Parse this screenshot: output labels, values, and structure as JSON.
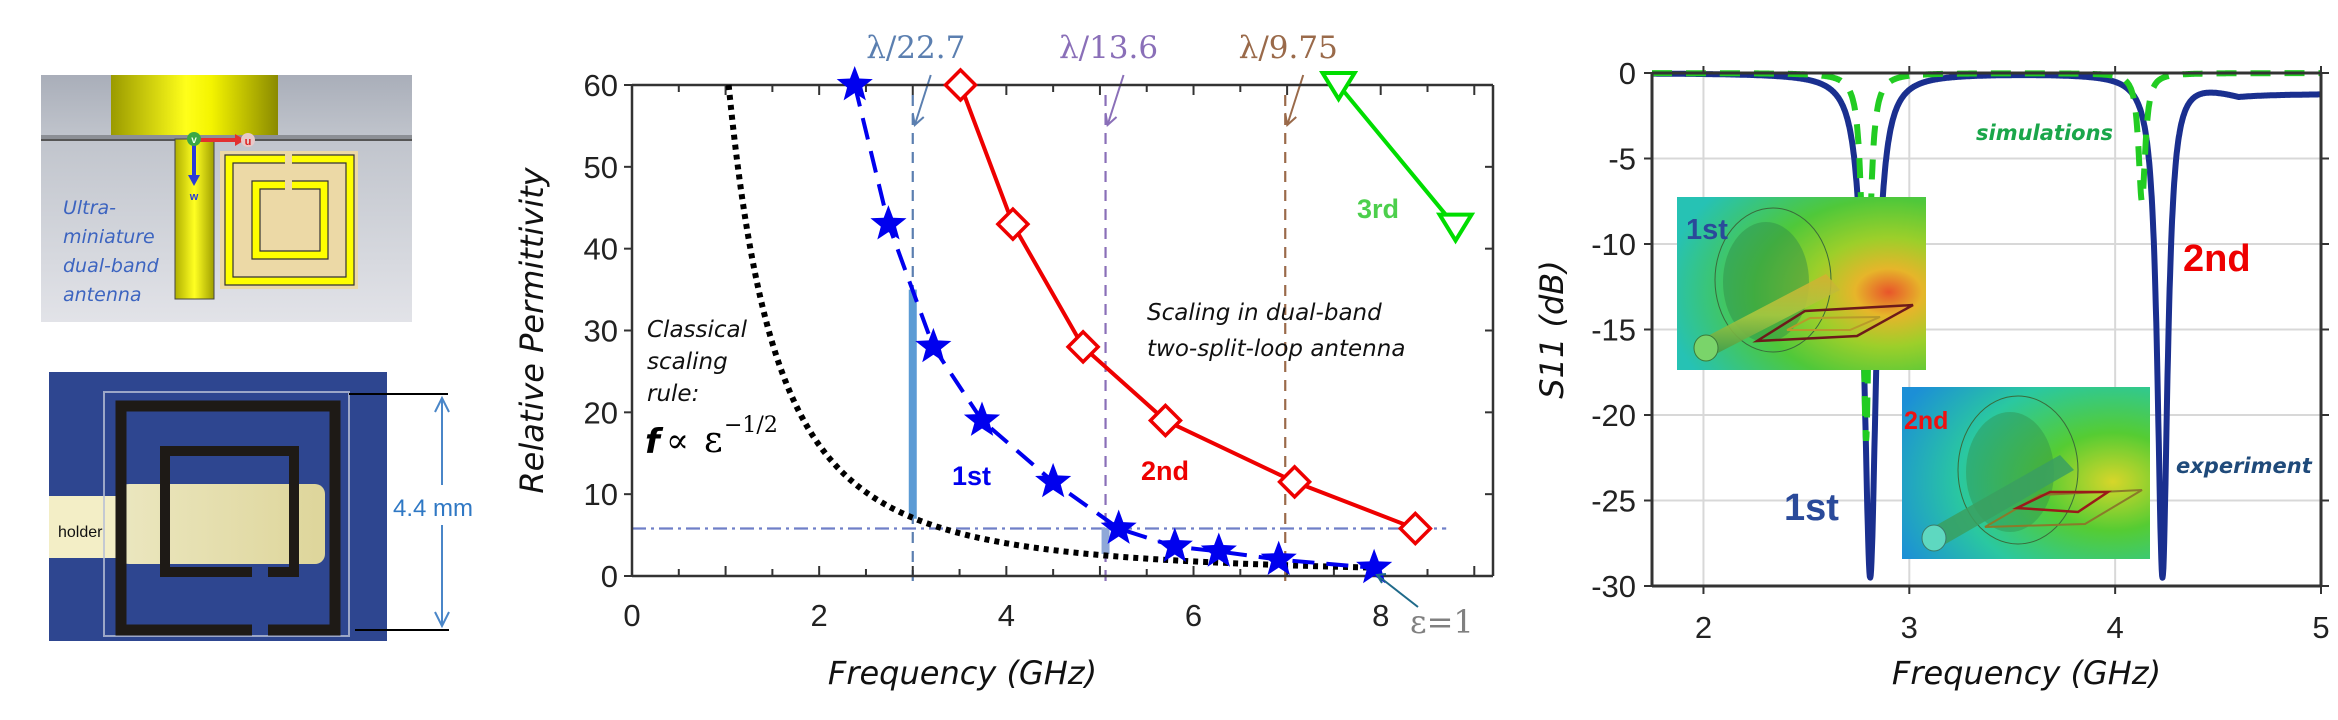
{
  "left_panel": {
    "cad_caption": [
      "Ultra-",
      "miniature",
      "dual-band",
      "antenna"
    ],
    "axis_u": "u",
    "axis_v": "v",
    "axis_w": "w",
    "photo_label": "holder",
    "dimension_label": "4.4 mm"
  },
  "colors": {
    "first_band": "#0000ee",
    "second_band": "#ee0000",
    "third_band": "#00dd00",
    "classical": "#000000",
    "experiment": "#1a2f8f",
    "simulation": "#22cc22"
  },
  "chart_data": [
    {
      "type": "line",
      "title": "",
      "xlabel": "Frequency (GHz)",
      "ylabel": "Relative Permittivity",
      "xlim": [
        0,
        9.2
      ],
      "ylim": [
        0,
        60
      ],
      "xticks": [
        0,
        2,
        4,
        6,
        8
      ],
      "yticks": [
        0,
        10,
        20,
        30,
        40,
        50,
        60
      ],
      "grid": false,
      "series": [
        {
          "name": "1st",
          "style": "dashed",
          "marker": "star",
          "points": [
            [
              2.38,
              60
            ],
            [
              2.74,
              43
            ],
            [
              3.22,
              28
            ],
            [
              3.74,
              19
            ],
            [
              4.5,
              11.5
            ],
            [
              5.2,
              5.8
            ],
            [
              5.8,
              3.6
            ],
            [
              6.27,
              3.0
            ],
            [
              6.91,
              2.0
            ],
            [
              7.93,
              1.0
            ]
          ]
        },
        {
          "name": "2nd",
          "style": "solid",
          "marker": "diamond",
          "points": [
            [
              3.51,
              60
            ],
            [
              4.07,
              43
            ],
            [
              4.82,
              28
            ],
            [
              5.7,
              19
            ],
            [
              7.08,
              11.5
            ],
            [
              8.37,
              5.8
            ]
          ]
        },
        {
          "name": "3rd",
          "style": "solid",
          "marker": "triangle-down",
          "points": [
            [
              7.55,
              60
            ],
            [
              8.8,
              42.7
            ]
          ]
        },
        {
          "name": "Classical scaling rule",
          "style": "dotted",
          "formula": "f = 8 / sqrt(eps)",
          "f0": 8.0,
          "eps_range": [
            1,
            60
          ]
        }
      ],
      "reference_lines": [
        {
          "type": "vertical",
          "x": 3.0,
          "label": "λ/22.7",
          "color": "#5b7fb0"
        },
        {
          "type": "vertical",
          "x": 5.06,
          "label": "λ/13.6",
          "color": "#8a6fb8"
        },
        {
          "type": "vertical",
          "x": 6.98,
          "label": "λ/9.75",
          "color": "#9a6a4a"
        },
        {
          "type": "horizontal",
          "y": 5.8,
          "color": "#6f7fc8"
        }
      ],
      "bars": [
        {
          "x": 3.0,
          "y_from": 7,
          "y_to": 35,
          "color": "#5b9bd5"
        },
        {
          "x": 5.06,
          "y_from": 2.7,
          "y_to": 5.9,
          "color": "#8fa8d8"
        }
      ],
      "annotations": {
        "classical_text": [
          "Classical",
          "scaling",
          "rule:"
        ],
        "formula_f": "f",
        "formula_prop": "∝",
        "formula_eps": "ε",
        "formula_exp": "−1/2",
        "dual_band_text": [
          "Scaling in dual-band",
          "two-split-loop antenna"
        ],
        "label_1st": "1st",
        "label_2nd": "2nd",
        "label_3rd": "3rd",
        "eps_one": "ε=1"
      }
    },
    {
      "type": "line",
      "title": "",
      "xlabel": "Frequency (GHz)",
      "ylabel": "S11 (dB)",
      "xlim": [
        1.75,
        5
      ],
      "ylim": [
        -30,
        0
      ],
      "xticks": [
        2,
        3,
        4,
        5
      ],
      "yticks": [
        0,
        -5,
        -10,
        -15,
        -20,
        -25,
        -30
      ],
      "grid": true,
      "series": [
        {
          "name": "experiment",
          "style": "solid",
          "resonances": [
            {
              "f": 2.81,
              "depth_db": -29.5,
              "width": 0.035
            },
            {
              "f": 4.23,
              "depth_db": -29.5,
              "width": 0.03
            }
          ],
          "end_value_db": -1.2
        },
        {
          "name": "simulations",
          "style": "dashed",
          "resonances": [
            {
              "f": 2.79,
              "depth_db": -21.5,
              "width": 0.018
            },
            {
              "f": 4.13,
              "depth_db": -7.5,
              "width": 0.02
            }
          ]
        }
      ],
      "annotations": {
        "simulations": "simulations",
        "experiment": "experiment",
        "label_1st": "1st",
        "label_2nd": "2nd",
        "inset_1st": "1st",
        "inset_2nd": "2nd"
      }
    }
  ]
}
